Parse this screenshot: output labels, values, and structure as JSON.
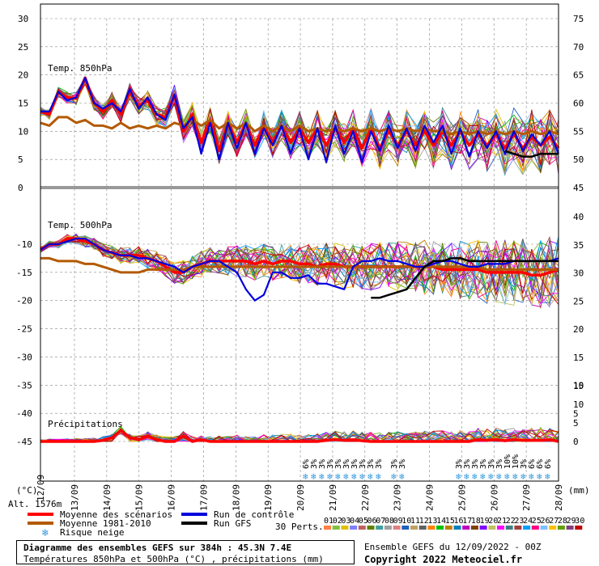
{
  "chart_data": [
    {
      "type": "line",
      "title": "Temp. 850hPa",
      "unit": "(°C)",
      "ylim": [
        0,
        30
      ],
      "right_ylim": [
        45,
        75
      ],
      "x_ticks": [
        "13/09",
        "14/09",
        "15/09",
        "16/09",
        "17/09",
        "18/09",
        "19/09",
        "20/09",
        "21/09",
        "22/09",
        "23/09",
        "24/09",
        "25/09",
        "26/09",
        "27/09",
        "28/09"
      ],
      "x_first_partial": "12/09",
      "series": [
        {
          "name": "Moyenne des scénarios",
          "color": "#ff0000",
          "values": [
            13.5,
            13,
            17,
            16,
            15.8,
            19.5,
            15,
            13.5,
            15.5,
            13,
            17,
            14.5,
            15.5,
            13,
            12.5,
            16.5,
            10,
            13,
            8,
            12,
            6.5,
            11.5,
            8,
            11.5,
            7.5,
            11,
            8,
            11,
            8,
            10.5,
            8,
            10.5,
            7.5,
            10.5,
            8,
            10.5,
            7,
            10.5,
            7,
            10,
            7.5,
            10,
            7.5,
            10,
            7.5,
            10,
            7.5,
            10,
            7.5,
            9.5,
            7.5,
            9.5,
            7,
            9.5,
            7,
            9,
            7.5,
            9,
            7
          ]
        },
        {
          "name": "Moyenne 1981-2010",
          "color": "#b35a00",
          "values": [
            11.5,
            11,
            12.5,
            12.5,
            11.5,
            12,
            11,
            11,
            10.5,
            11.5,
            10.5,
            11,
            10.5,
            11,
            10.5,
            11.5,
            11,
            12,
            11,
            12,
            10.5,
            11.5,
            10.5,
            11.5,
            10,
            11,
            10,
            11,
            10,
            11,
            10,
            10.5,
            10,
            10.5,
            10,
            10.5,
            10,
            10.5,
            10,
            10.5,
            10,
            10.5,
            10,
            10.5,
            10,
            10,
            9.5,
            10,
            9.5,
            10,
            9.5,
            10,
            9.5,
            10,
            9.5,
            10,
            9.5,
            10,
            9.5
          ]
        },
        {
          "name": "Run de contrôle",
          "color": "#0000dd",
          "values": [
            13.5,
            13.5,
            17,
            15.5,
            16,
            19.5,
            15,
            14,
            15,
            13.5,
            17.5,
            14,
            16,
            13,
            12,
            16.5,
            10.5,
            12.5,
            6,
            11.5,
            5,
            11.5,
            7,
            11.5,
            6,
            10.5,
            7.5,
            11,
            6,
            10.5,
            5,
            10.5,
            4.5,
            11,
            6,
            10,
            4.5,
            10,
            6.5,
            11,
            7,
            10.5,
            6.5,
            11,
            8,
            11,
            6,
            10.5,
            5.5,
            10,
            7,
            10,
            6,
            10,
            6.5,
            9.5,
            7.5,
            10,
            6
          ]
        },
        {
          "name": "Run GFS",
          "color": "#000000",
          "values": [
            null,
            null,
            null,
            null,
            null,
            null,
            null,
            null,
            null,
            null,
            null,
            null,
            null,
            null,
            null,
            null,
            null,
            null,
            null,
            null,
            null,
            null,
            null,
            null,
            null,
            null,
            null,
            null,
            null,
            null,
            null,
            null,
            null,
            null,
            null,
            null,
            null,
            null,
            null,
            5,
            null,
            null,
            null,
            null,
            null,
            null,
            null,
            null,
            null,
            null,
            null,
            null,
            6.5,
            6,
            5.5,
            5.5,
            6,
            6,
            6
          ]
        }
      ]
    },
    {
      "type": "line",
      "title": "Temp. 500hPa",
      "unit": "(°C)",
      "ylim": [
        -45,
        -10
      ],
      "y_ticks": [
        -10,
        -15,
        -20,
        -25,
        -30,
        -35,
        -40,
        -45
      ],
      "right_ylim": [
        0,
        40
      ],
      "right_ticks": [
        40,
        35,
        30,
        25,
        20,
        15,
        10,
        5,
        0
      ],
      "series": [
        {
          "name": "Moyenne des scénarios",
          "color": "#ff0000",
          "values": [
            -11,
            -10,
            -10,
            -9,
            -9,
            -9.5,
            -10,
            -11,
            -11.5,
            -12,
            -12,
            -12,
            -12.5,
            -13,
            -14,
            -15,
            -15,
            -14,
            -13.5,
            -13,
            -13,
            -13,
            -13,
            -13,
            -13.5,
            -13,
            -13.5,
            -13,
            -13,
            -13.5,
            -13.5,
            -14,
            -13.5,
            -13.5,
            -14,
            -14,
            -14,
            -14,
            -14,
            -14,
            -14,
            -14,
            -14,
            -14,
            -14,
            -14.5,
            -14.5,
            -14.5,
            -14.5,
            -14.5,
            -15,
            -15,
            -15,
            -15,
            -15,
            -15.5,
            -15.5,
            -15,
            -14.5
          ]
        },
        {
          "name": "Moyenne 1981-2010",
          "color": "#b35a00",
          "values": [
            -12.5,
            -12.5,
            -13,
            -13,
            -13,
            -13.5,
            -13.5,
            -14,
            -14.5,
            -15,
            -15,
            -15,
            -14.5,
            -14.5,
            -14.5,
            -14.5,
            -14.5,
            -14,
            -14,
            -14,
            -14,
            -14,
            -14,
            -14,
            -14,
            -14,
            -14,
            -14,
            -14,
            -14,
            -14,
            -14,
            -14,
            -14,
            -14,
            -14,
            -14,
            -14,
            -14,
            -14,
            -14,
            -14,
            -14,
            -14,
            -14,
            -14,
            -14,
            -14,
            -14,
            -14,
            -14.5,
            -14.5,
            -14.5,
            -14.5,
            -14.5,
            -14.5,
            -14.5,
            -14.5,
            -14.5
          ]
        },
        {
          "name": "Run de contrôle",
          "color": "#0000dd",
          "values": [
            -11,
            -10,
            -10,
            -9.5,
            -9,
            -9,
            -10,
            -11,
            -11.5,
            -12,
            -12,
            -12.5,
            -12.5,
            -13,
            -13.5,
            -14,
            -15,
            -14,
            -13.5,
            -13,
            -13,
            -14,
            -15,
            -18,
            -20,
            -19,
            -15,
            -15,
            -16,
            -16,
            -15.5,
            -17,
            -17,
            -17.5,
            -18,
            -14,
            -13,
            -13,
            -12.5,
            -13,
            -13,
            -13.5,
            -14,
            -14,
            -13.5,
            -13,
            -13,
            -13.5,
            -14,
            -14,
            -13.5,
            -13.5,
            -13.5,
            -13,
            -13,
            -13,
            -13,
            -13,
            -12.5
          ]
        },
        {
          "name": "Run GFS",
          "color": "#000000",
          "values": [
            null,
            null,
            null,
            null,
            null,
            null,
            null,
            null,
            null,
            null,
            null,
            null,
            null,
            null,
            null,
            null,
            null,
            null,
            null,
            null,
            null,
            null,
            null,
            null,
            null,
            null,
            null,
            null,
            null,
            null,
            null,
            null,
            null,
            null,
            null,
            null,
            null,
            -19.5,
            -19.5,
            -19,
            -18.5,
            -18,
            -16,
            -14,
            -13,
            -13,
            -12.5,
            -12.5,
            -13,
            -13,
            -13,
            -13,
            -13,
            -13,
            -13,
            -13,
            -13,
            -13,
            -13
          ]
        }
      ]
    },
    {
      "type": "line",
      "title": "Précipitations",
      "unit": "(mm)",
      "right_ticks": [
        15,
        10,
        5,
        0
      ],
      "series": [
        {
          "name": "Moyenne des scénarios",
          "color": "#ff0000",
          "values": [
            0,
            0,
            0,
            0,
            0,
            0,
            0,
            0.3,
            1,
            3,
            1,
            0.5,
            1.5,
            0.5,
            0,
            0,
            1.5,
            0,
            0.5,
            0,
            0,
            0,
            0,
            0,
            0,
            0,
            0,
            0,
            0,
            0,
            0,
            0,
            0.3,
            0.5,
            0.3,
            0.5,
            0.2,
            0,
            0,
            0,
            0,
            0,
            0,
            0,
            0,
            0,
            0,
            0,
            0,
            0.5,
            0.3,
            0.5,
            0.2,
            0.5,
            0.3,
            0.3,
            0.3,
            0.5,
            0
          ]
        }
      ]
    }
  ],
  "x_axis_labels": [
    "13/09",
    "14/09",
    "15/09",
    "16/09",
    "17/09",
    "18/09",
    "19/09",
    "20/09",
    "21/09",
    "22/09",
    "23/09",
    "24/09",
    "25/09",
    "26/09",
    "27/09",
    "28/09"
  ],
  "left_axis_unit": "(°C)",
  "right_axis_unit": "(mm)",
  "left_ticks_top": [
    30,
    25,
    20,
    15,
    10,
    5,
    0
  ],
  "right_ticks_top": [
    75,
    70,
    65,
    60,
    55,
    50,
    45
  ],
  "left_ticks_mid": [
    -10,
    -15,
    -20,
    -25,
    -30,
    -35,
    -40,
    -45
  ],
  "right_ticks_mid": [
    40,
    35,
    30,
    25,
    20,
    15,
    10,
    5,
    0
  ],
  "snow_risk_labels_a": [
    "6%",
    "3%",
    "3%",
    "3%",
    "3%",
    "3%",
    "3%",
    "3%",
    "3%",
    "3%"
  ],
  "snow_risk_labels_b": [
    "3%",
    "3%"
  ],
  "snow_risk_labels_c": [
    "3%",
    "3%",
    "3%",
    "3%",
    "3%",
    "3%",
    "10%",
    "10%",
    "3%",
    "6%",
    "6%",
    "6%"
  ],
  "altitude": "Alt. 1576m",
  "legend": {
    "mean": "Moyenne des scénarios",
    "clim": "Moyenne 1981-2010",
    "snow": "Risque neige",
    "control": "Run de contrôle",
    "gfs": "Run GFS",
    "perts": "30 Perts.",
    "pert_numbers": [
      "01",
      "02",
      "03",
      "04",
      "05",
      "06",
      "07",
      "08",
      "09",
      "10",
      "11",
      "12",
      "13",
      "14",
      "15",
      "16",
      "17",
      "18",
      "19",
      "20",
      "21",
      "22",
      "23",
      "24",
      "25",
      "26",
      "27",
      "28",
      "29",
      "30"
    ],
    "pert_colors": [
      "#ff8040",
      "#80c040",
      "#e0c000",
      "#8080ff",
      "#c06060",
      "#608000",
      "#40a0a0",
      "#a0a0a0",
      "#e08080",
      "#2060c0",
      "#c0a060",
      "#606060",
      "#ff8000",
      "#00c000",
      "#c08000",
      "#0080c0",
      "#c000c0",
      "#804000",
      "#8000ff",
      "#c0c060",
      "#ff00ff",
      "#408080",
      "#a04040",
      "#00a0ff",
      "#ff0080",
      "#80c0ff",
      "#ffc000",
      "#60a000",
      "#804080",
      "#c00000"
    ],
    "colors": {
      "mean": "#ff0000",
      "clim": "#b35a00",
      "control": "#0000dd",
      "gfs": "#000000",
      "snow": "#3399dd"
    }
  },
  "footer": {
    "title": "Diagramme des ensembles GEFS sur 384h : 45.3N 7.4E",
    "subtitle": "Températures 850hPa et 500hPa (°C) , précipitations (mm)",
    "run_info": "Ensemble GEFS du 12/09/2022 - 00Z",
    "copyright": "Copyright 2022 Meteociel.fr"
  }
}
